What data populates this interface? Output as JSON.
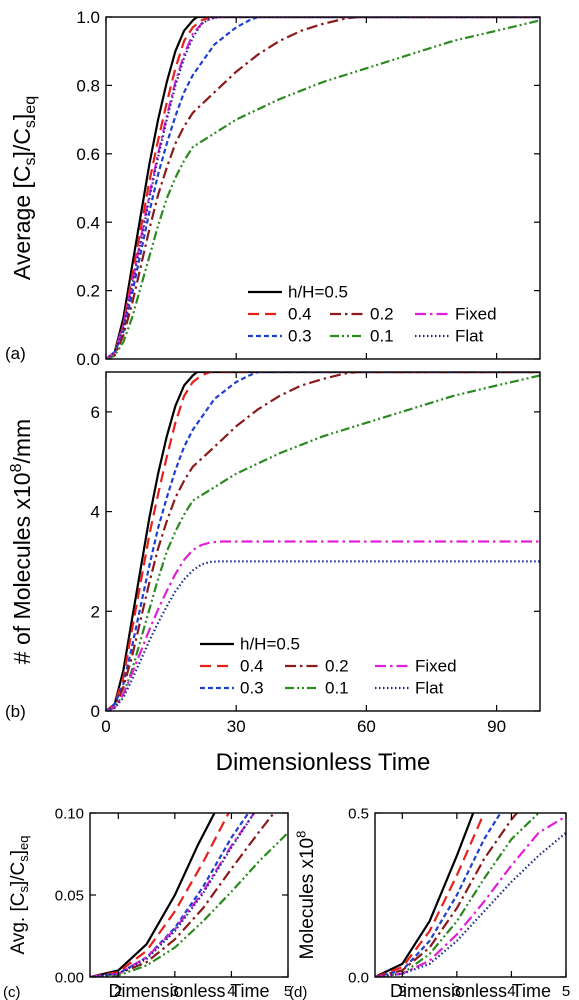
{
  "chart_data": [
    {
      "panel": "(a)",
      "type": "line",
      "ylabel": {
        "pre": "Average [C",
        "sub1": "s",
        "mid": "]/C",
        "sub2": "s",
        "post": "]",
        "sub3": "eq"
      },
      "xlim": [
        0,
        100
      ],
      "ylim": [
        0,
        1.0
      ],
      "xticks": [
        0,
        30,
        60,
        90
      ],
      "yticks": [
        0.0,
        0.2,
        0.4,
        0.6,
        0.8,
        1.0
      ],
      "ytick_labels": [
        "0.0",
        "0.2",
        "0.4",
        "0.6",
        "0.8",
        "1.0"
      ],
      "legend": {
        "placement": "bottom-right",
        "rows": [
          [
            "h/H=0.5"
          ],
          [
            "0.4",
            "0.2",
            "Fixed"
          ],
          [
            "0.3",
            "0.1",
            "Flat"
          ]
        ]
      },
      "series": [
        {
          "name": "h/H=0.5",
          "color": "#000000",
          "dash": "solid",
          "x": [
            0,
            2,
            4,
            6,
            8,
            10,
            12,
            14,
            16,
            18,
            20,
            21,
            22,
            100
          ],
          "y": [
            0,
            0.02,
            0.12,
            0.27,
            0.42,
            0.57,
            0.7,
            0.81,
            0.9,
            0.96,
            0.99,
            1.0,
            1.0,
            1.0
          ]
        },
        {
          "name": "0.4",
          "color": "#e8201c",
          "dash": "long-dash",
          "x": [
            0,
            2,
            4,
            6,
            8,
            10,
            12,
            14,
            16,
            18,
            20,
            22,
            24,
            100
          ],
          "y": [
            0,
            0.02,
            0.1,
            0.24,
            0.38,
            0.52,
            0.64,
            0.75,
            0.85,
            0.93,
            0.97,
            0.99,
            1.0,
            1.0
          ]
        },
        {
          "name": "0.3",
          "color": "#1f3fd0",
          "dash": "short-dash",
          "x": [
            0,
            2,
            4,
            6,
            8,
            10,
            12,
            14,
            16,
            18,
            20,
            25,
            30,
            33,
            35,
            100
          ],
          "y": [
            0,
            0.02,
            0.08,
            0.19,
            0.31,
            0.43,
            0.54,
            0.63,
            0.71,
            0.78,
            0.83,
            0.92,
            0.97,
            0.99,
            1.0,
            1.0
          ]
        },
        {
          "name": "0.2",
          "color": "#8b1a1a",
          "dash": "dash-dot",
          "x": [
            0,
            2,
            4,
            6,
            8,
            10,
            12,
            14,
            16,
            18,
            20,
            25,
            30,
            35,
            40,
            45,
            50,
            55,
            58,
            100
          ],
          "y": [
            0,
            0.01,
            0.07,
            0.16,
            0.27,
            0.38,
            0.48,
            0.56,
            0.63,
            0.68,
            0.72,
            0.78,
            0.84,
            0.89,
            0.93,
            0.96,
            0.98,
            0.995,
            1.0,
            1.0
          ]
        },
        {
          "name": "0.1",
          "color": "#2a8a1f",
          "dash": "dash-dot-dot",
          "x": [
            0,
            2,
            4,
            6,
            8,
            10,
            12,
            14,
            16,
            18,
            20,
            25,
            30,
            40,
            50,
            60,
            70,
            80,
            90,
            100
          ],
          "y": [
            0,
            0.01,
            0.05,
            0.12,
            0.21,
            0.3,
            0.39,
            0.47,
            0.53,
            0.58,
            0.62,
            0.66,
            0.7,
            0.76,
            0.81,
            0.85,
            0.89,
            0.93,
            0.96,
            0.99
          ]
        },
        {
          "name": "Fixed",
          "color": "#e020d8",
          "dash": "dash-dot",
          "x": [
            0,
            2,
            4,
            6,
            8,
            10,
            12,
            14,
            16,
            18,
            20,
            22,
            24,
            26,
            100
          ],
          "y": [
            0,
            0.02,
            0.1,
            0.22,
            0.35,
            0.48,
            0.6,
            0.71,
            0.81,
            0.89,
            0.95,
            0.98,
            0.995,
            1.0,
            1.0
          ]
        },
        {
          "name": "Flat",
          "color": "#1a2a8c",
          "dash": "dotted",
          "x": [
            0,
            2,
            4,
            6,
            8,
            10,
            12,
            14,
            16,
            18,
            20,
            22,
            24,
            26,
            100
          ],
          "y": [
            0,
            0.02,
            0.09,
            0.21,
            0.34,
            0.47,
            0.59,
            0.7,
            0.8,
            0.88,
            0.94,
            0.98,
            0.995,
            1.0,
            1.0
          ]
        }
      ]
    },
    {
      "panel": "(b)",
      "type": "line",
      "ylabel": {
        "pre": "# of Molecules x10",
        "sup": "8",
        "post": "/mm"
      },
      "xlabel": "Dimensionless Time",
      "xlim": [
        0,
        100
      ],
      "ylim": [
        0,
        6.8
      ],
      "xticks": [
        0,
        30,
        60,
        90
      ],
      "xtick_labels": [
        "0",
        "30",
        "60",
        "90"
      ],
      "yticks": [
        0,
        2,
        4,
        6
      ],
      "ytick_labels": [
        "0",
        "2",
        "4",
        "6"
      ],
      "legend": {
        "placement": "bottom-right",
        "rows": [
          [
            "h/H=0.5"
          ],
          [
            "0.4",
            "0.2",
            "Fixed"
          ],
          [
            "0.3",
            "0.1",
            "Flat"
          ]
        ]
      },
      "series": [
        {
          "name": "h/H=0.5",
          "color": "#000000",
          "dash": "solid",
          "x": [
            0,
            2,
            4,
            6,
            8,
            10,
            12,
            14,
            16,
            18,
            20,
            21,
            22,
            100
          ],
          "y": [
            0,
            0.14,
            0.82,
            1.84,
            2.86,
            3.88,
            4.76,
            5.51,
            6.12,
            6.53,
            6.73,
            6.8,
            6.8,
            6.8
          ]
        },
        {
          "name": "0.4",
          "color": "#e8201c",
          "dash": "long-dash",
          "x": [
            0,
            2,
            4,
            6,
            8,
            10,
            12,
            14,
            16,
            18,
            20,
            22,
            24,
            100
          ],
          "y": [
            0,
            0.14,
            0.68,
            1.63,
            2.58,
            3.54,
            4.35,
            5.1,
            5.78,
            6.32,
            6.6,
            6.73,
            6.8,
            6.8
          ]
        },
        {
          "name": "0.3",
          "color": "#1f3fd0",
          "dash": "short-dash",
          "x": [
            0,
            2,
            4,
            6,
            8,
            10,
            12,
            14,
            16,
            18,
            20,
            25,
            30,
            33,
            35,
            100
          ],
          "y": [
            0,
            0.14,
            0.54,
            1.29,
            2.11,
            2.92,
            3.67,
            4.28,
            4.83,
            5.3,
            5.64,
            6.26,
            6.6,
            6.73,
            6.8,
            6.8
          ]
        },
        {
          "name": "0.2",
          "color": "#8b1a1a",
          "dash": "dash-dot",
          "x": [
            0,
            2,
            4,
            6,
            8,
            10,
            12,
            14,
            16,
            18,
            20,
            25,
            30,
            35,
            40,
            45,
            50,
            55,
            58,
            100
          ],
          "y": [
            0,
            0.07,
            0.48,
            1.09,
            1.84,
            2.58,
            3.26,
            3.81,
            4.28,
            4.62,
            4.9,
            5.3,
            5.71,
            6.05,
            6.32,
            6.53,
            6.66,
            6.77,
            6.8,
            6.8
          ]
        },
        {
          "name": "0.1",
          "color": "#2a8a1f",
          "dash": "dash-dot-dot",
          "x": [
            0,
            2,
            4,
            6,
            8,
            10,
            12,
            14,
            16,
            18,
            20,
            25,
            30,
            40,
            50,
            60,
            70,
            80,
            90,
            100
          ],
          "y": [
            0,
            0.07,
            0.34,
            0.82,
            1.43,
            2.04,
            2.65,
            3.2,
            3.6,
            3.94,
            4.22,
            4.49,
            4.76,
            5.17,
            5.51,
            5.78,
            6.05,
            6.32,
            6.53,
            6.73
          ]
        },
        {
          "name": "Fixed",
          "color": "#e020d8",
          "dash": "dash-dot",
          "x": [
            0,
            2,
            4,
            6,
            8,
            10,
            12,
            14,
            16,
            18,
            20,
            22,
            24,
            26,
            100
          ],
          "y": [
            0,
            0.07,
            0.34,
            0.75,
            1.19,
            1.63,
            2.04,
            2.41,
            2.75,
            3.03,
            3.23,
            3.33,
            3.38,
            3.4,
            3.4
          ]
        },
        {
          "name": "Flat",
          "color": "#1a2a8c",
          "dash": "dotted",
          "x": [
            0,
            2,
            4,
            6,
            8,
            10,
            12,
            14,
            16,
            18,
            20,
            22,
            24,
            26,
            100
          ],
          "y": [
            0,
            0.06,
            0.27,
            0.63,
            1.02,
            1.41,
            1.77,
            2.1,
            2.4,
            2.64,
            2.82,
            2.94,
            2.99,
            3.0,
            3.0
          ]
        }
      ]
    },
    {
      "panel": "(c)",
      "type": "line",
      "ylabel": {
        "pre": "Avg. [C",
        "sub1": "s",
        "mid": "]/C",
        "sub2": "s",
        "post": "]",
        "sub3": "eq"
      },
      "xlabel": "Dimensionless Time",
      "xlim": [
        1.5,
        5
      ],
      "ylim": [
        0,
        0.1
      ],
      "xticks": [
        2,
        3,
        4,
        5
      ],
      "xtick_labels": [
        "2",
        "3",
        "4",
        "5"
      ],
      "yticks": [
        0,
        0.05,
        0.1
      ],
      "ytick_labels": [
        "0.00",
        "0.05",
        "0.10"
      ],
      "series": [
        {
          "name": "h/H=0.5",
          "color": "#000000",
          "dash": "solid",
          "x": [
            1.5,
            2.0,
            2.5,
            3.0,
            3.4,
            3.7
          ],
          "y": [
            0.0,
            0.004,
            0.02,
            0.05,
            0.08,
            0.1
          ]
        },
        {
          "name": "0.4",
          "color": "#e8201c",
          "dash": "long-dash",
          "x": [
            1.5,
            2.0,
            2.5,
            3.0,
            3.5,
            3.95
          ],
          "y": [
            0.0,
            0.003,
            0.016,
            0.04,
            0.07,
            0.1
          ]
        },
        {
          "name": "0.3",
          "color": "#1f3fd0",
          "dash": "short-dash",
          "x": [
            1.5,
            2.0,
            2.5,
            3.0,
            3.5,
            4.0,
            4.3
          ],
          "y": [
            0.0,
            0.002,
            0.012,
            0.03,
            0.055,
            0.085,
            0.1
          ]
        },
        {
          "name": "0.2",
          "color": "#8b1a1a",
          "dash": "dash-dot",
          "x": [
            1.5,
            2.0,
            2.5,
            3.0,
            3.5,
            4.0,
            4.5,
            4.75
          ],
          "y": [
            0.0,
            0.002,
            0.009,
            0.023,
            0.042,
            0.066,
            0.089,
            0.1
          ]
        },
        {
          "name": "0.1",
          "color": "#2a8a1f",
          "dash": "dash-dot-dot",
          "x": [
            1.5,
            2.0,
            2.5,
            3.0,
            3.5,
            4.0,
            4.5,
            5.0
          ],
          "y": [
            0.0,
            0.001,
            0.007,
            0.018,
            0.034,
            0.052,
            0.071,
            0.088
          ]
        },
        {
          "name": "Fixed",
          "color": "#e020d8",
          "dash": "dash-dot",
          "x": [
            1.5,
            2.0,
            2.5,
            3.0,
            3.5,
            4.0,
            4.4
          ],
          "y": [
            0.0,
            0.002,
            0.012,
            0.029,
            0.052,
            0.08,
            0.1
          ]
        },
        {
          "name": "Flat",
          "color": "#1a2a8c",
          "dash": "dotted",
          "x": [
            1.5,
            2.0,
            2.5,
            3.0,
            3.5,
            4.0,
            4.4
          ],
          "y": [
            0.0,
            0.002,
            0.011,
            0.028,
            0.051,
            0.079,
            0.1
          ]
        }
      ]
    },
    {
      "panel": "(d)",
      "type": "line",
      "ylabel": {
        "pre": "Molecules x10",
        "sup": "8"
      },
      "xlabel": "Dimensionless Time",
      "xlim": [
        1.5,
        5
      ],
      "ylim": [
        0,
        0.5
      ],
      "xticks": [
        2,
        3,
        4,
        5
      ],
      "xtick_labels": [
        "2",
        "3",
        "4",
        "5"
      ],
      "yticks": [
        0,
        0.5
      ],
      "ytick_labels": [
        "0.0",
        "0.5"
      ],
      "series": [
        {
          "name": "h/H=0.5",
          "color": "#000000",
          "dash": "solid",
          "x": [
            1.5,
            2.0,
            2.5,
            3.0,
            3.3
          ],
          "y": [
            0.0,
            0.04,
            0.17,
            0.37,
            0.5
          ]
        },
        {
          "name": "0.4",
          "color": "#e8201c",
          "dash": "long-dash",
          "x": [
            1.5,
            2.0,
            2.5,
            3.0,
            3.5
          ],
          "y": [
            0.0,
            0.03,
            0.14,
            0.31,
            0.5
          ]
        },
        {
          "name": "0.3",
          "color": "#1f3fd0",
          "dash": "short-dash",
          "x": [
            1.5,
            2.0,
            2.5,
            3.0,
            3.5,
            3.8
          ],
          "y": [
            0.0,
            0.02,
            0.11,
            0.25,
            0.42,
            0.5
          ]
        },
        {
          "name": "0.2",
          "color": "#8b1a1a",
          "dash": "dash-dot",
          "x": [
            1.5,
            2.0,
            2.5,
            3.0,
            3.5,
            4.0,
            4.1
          ],
          "y": [
            0.0,
            0.02,
            0.09,
            0.21,
            0.36,
            0.48,
            0.5
          ]
        },
        {
          "name": "0.1",
          "color": "#2a8a1f",
          "dash": "dash-dot-dot",
          "x": [
            1.5,
            2.0,
            2.5,
            3.0,
            3.5,
            4.0,
            4.5
          ],
          "y": [
            0.0,
            0.01,
            0.07,
            0.17,
            0.3,
            0.42,
            0.5
          ]
        },
        {
          "name": "Fixed",
          "color": "#e020d8",
          "dash": "dash-dot",
          "x": [
            1.5,
            2.0,
            2.5,
            3.0,
            3.5,
            4.0,
            4.5,
            5.0
          ],
          "y": [
            0.0,
            0.01,
            0.05,
            0.13,
            0.23,
            0.34,
            0.44,
            0.49
          ]
        },
        {
          "name": "Flat",
          "color": "#1a2a8c",
          "dash": "dotted",
          "x": [
            1.5,
            2.0,
            2.5,
            3.0,
            3.5,
            4.0,
            4.5,
            5.0
          ],
          "y": [
            0.0,
            0.01,
            0.04,
            0.11,
            0.2,
            0.29,
            0.37,
            0.44
          ]
        }
      ]
    }
  ]
}
